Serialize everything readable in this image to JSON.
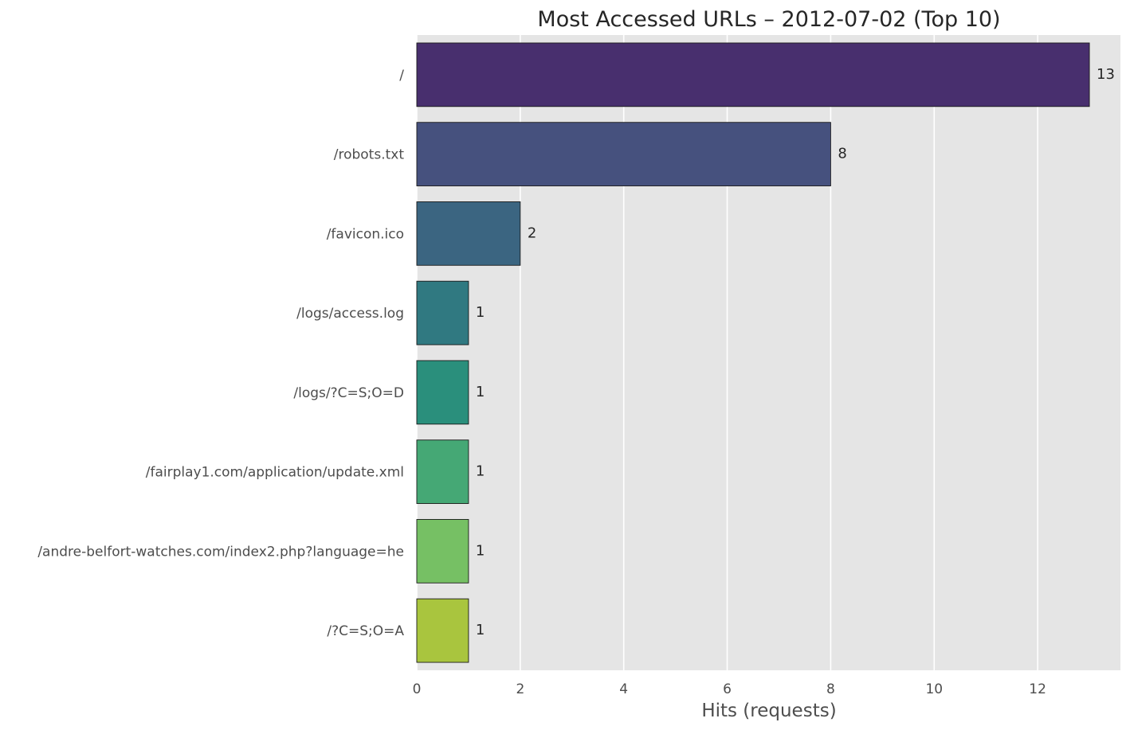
{
  "chart_data": {
    "type": "bar",
    "orientation": "horizontal",
    "title": "Most Accessed URLs – 2012-07-02 (Top 10)",
    "xlabel": "Hits (requests)",
    "ylabel": "",
    "categories": [
      "/",
      "/robots.txt",
      "/favicon.ico",
      "/logs/access.log",
      "/logs/?C=S;O=D",
      "/fairplay1.com/application/update.xml",
      "/andre-belfort-watches.com/index2.php?language=he",
      "/?C=S;O=A"
    ],
    "values": [
      13,
      8,
      2,
      1,
      1,
      1,
      1,
      1
    ],
    "data_labels": [
      "13",
      "8",
      "2",
      "1",
      "1",
      "1",
      "1",
      "1"
    ],
    "colors": [
      "#482f6e",
      "#46517e",
      "#3b6581",
      "#307981",
      "#2a8f7c",
      "#45a875",
      "#76c064",
      "#a9c53e"
    ],
    "xlim": [
      0,
      13.6
    ],
    "xticks": [
      0,
      2,
      4,
      6,
      8,
      10,
      12
    ],
    "xtick_labels": [
      "0",
      "2",
      "4",
      "6",
      "8",
      "10",
      "12"
    ],
    "grid": true,
    "legend": "none",
    "background": "#e5e5e5",
    "grid_color": "#ffffff"
  }
}
